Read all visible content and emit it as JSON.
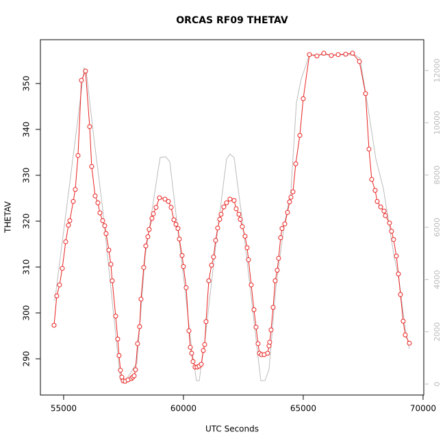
{
  "chart_data": {
    "type": "line",
    "title": "ORCAS RF09 THETAV",
    "xlabel": "UTC Seconds",
    "ylabel": "THETAV",
    "xlim": [
      54030,
      70030
    ],
    "xticks": [
      55000,
      60000,
      65000,
      70000
    ],
    "ylim": [
      282.1,
      359.55
    ],
    "yticks": [
      290,
      300,
      310,
      320,
      330,
      340,
      350
    ],
    "y2lim": [
      -420,
      13180
    ],
    "y2ticks": [
      0,
      2000,
      4000,
      6000,
      8000,
      10000,
      12000
    ],
    "series": [
      {
        "color": "#bbbbbb",
        "axis": "y2",
        "markers": false,
        "x": [
          54629,
          55571,
          55857,
          55943,
          56257,
          56629,
          57057,
          57371,
          57571,
          58057,
          58400,
          58914,
          59029,
          59257,
          59429,
          59714,
          60057,
          60343,
          60543,
          60657,
          60886,
          61343,
          61800,
          61943,
          62114,
          62486,
          62914,
          63229,
          63400,
          63571,
          63857,
          64200,
          64486,
          64714,
          64914,
          65086,
          65257,
          67143,
          67371,
          67714,
          68029,
          68343,
          68771,
          69000,
          69257,
          69429
        ],
        "values": [
          3170,
          9980,
          12100,
          11970,
          9460,
          6710,
          2910,
          160,
          100,
          810,
          4870,
          8020,
          8670,
          8700,
          8510,
          6310,
          3690,
          1340,
          130,
          130,
          1600,
          5270,
          8620,
          8800,
          8670,
          6050,
          2650,
          130,
          130,
          550,
          3690,
          6050,
          7410,
          10770,
          11680,
          12130,
          12600,
          12600,
          12470,
          10510,
          8620,
          7490,
          5000,
          3960,
          2120,
          1340
        ]
      },
      {
        "color": "#e8201e",
        "axis": "y",
        "markers": true,
        "x": [
          54600,
          54714,
          54829,
          54943,
          55086,
          55200,
          55257,
          55400,
          55486,
          55600,
          55743,
          55914,
          56086,
          56171,
          56314,
          56429,
          56514,
          56629,
          56714,
          56771,
          56886,
          56971,
          57029,
          57171,
          57257,
          57314,
          57371,
          57429,
          57486,
          57571,
          57686,
          57829,
          57886,
          57943,
          58000,
          58086,
          58171,
          58229,
          58343,
          58429,
          58514,
          58571,
          58686,
          58743,
          58857,
          59000,
          59229,
          59371,
          59486,
          59600,
          59686,
          59771,
          59829,
          59943,
          60000,
          60114,
          60229,
          60286,
          60343,
          60400,
          60486,
          60571,
          60657,
          60743,
          60829,
          60886,
          60943,
          61057,
          61171,
          61257,
          61343,
          61429,
          61514,
          61571,
          61686,
          61800,
          61943,
          62114,
          62200,
          62314,
          62371,
          62457,
          62571,
          62657,
          62714,
          62829,
          62943,
          63029,
          63114,
          63171,
          63257,
          63371,
          63514,
          63571,
          63600,
          63657,
          63743,
          63829,
          63914,
          63971,
          64057,
          64114,
          64229,
          64343,
          64429,
          64486,
          64571,
          64686,
          64857,
          65000,
          65257,
          65571,
          65857,
          66171,
          66457,
          66771,
          67057,
          67343,
          67600,
          67743,
          67857,
          68000,
          68086,
          68229,
          68371,
          68429,
          68600,
          68686,
          68771,
          68886,
          68971,
          69057,
          69171,
          69257,
          69429
        ],
        "values": [
          297.3,
          303.7,
          306.1,
          309.7,
          315.5,
          319.1,
          320.1,
          324.3,
          326.9,
          334.3,
          350.7,
          352.7,
          340.6,
          331.9,
          325.5,
          324.0,
          321.8,
          320.1,
          319.0,
          317.3,
          313.7,
          310.6,
          307.0,
          299.3,
          294.3,
          290.7,
          287.5,
          286.0,
          285.2,
          285.1,
          285.4,
          285.7,
          286.0,
          286.3,
          287.6,
          293.3,
          297.0,
          303.0,
          309.9,
          314.6,
          316.6,
          318.2,
          320.6,
          321.6,
          323.0,
          325.1,
          324.8,
          324.3,
          323.0,
          320.3,
          319.3,
          318.4,
          316.1,
          312.5,
          310.1,
          305.5,
          296.1,
          292.5,
          291.2,
          289.4,
          288.2,
          288.2,
          288.4,
          288.8,
          291.8,
          293.1,
          298.1,
          307.0,
          310.4,
          312.2,
          315.8,
          318.5,
          320.4,
          321.5,
          323.1,
          324.0,
          324.8,
          324.5,
          322.7,
          321.5,
          320.4,
          318.8,
          316.7,
          314.2,
          311.6,
          306.1,
          300.7,
          296.9,
          293.3,
          291.2,
          290.9,
          290.9,
          291.2,
          292.8,
          293.6,
          296.3,
          301.2,
          307.0,
          309.3,
          311.9,
          316.4,
          318.4,
          319.4,
          321.9,
          324.2,
          325.2,
          326.4,
          332.5,
          338.7,
          346.7,
          356.3,
          356.0,
          356.6,
          356.1,
          356.3,
          356.4,
          356.6,
          354.8,
          347.8,
          335.7,
          329.1,
          326.7,
          324.3,
          323.1,
          322.2,
          321.2,
          319.6,
          317.8,
          316.0,
          312.4,
          308.5,
          304.0,
          298.2,
          295.2,
          293.4
        ]
      }
    ]
  }
}
